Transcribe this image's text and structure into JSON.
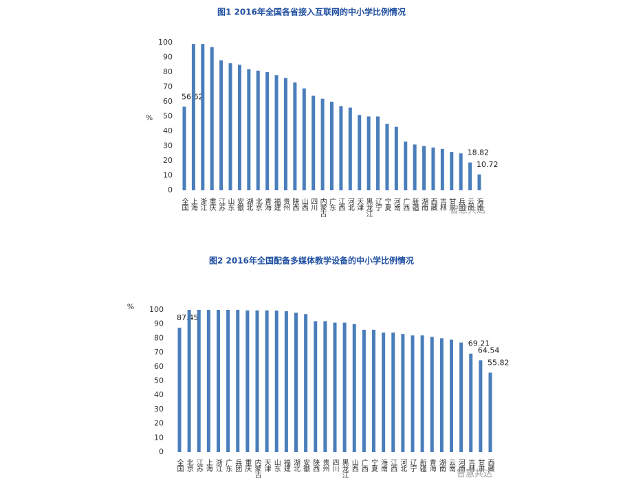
{
  "chart_data": [
    {
      "type": "bar",
      "title": "图1 2016年全国各省接入互联网的中小学比例情况",
      "y_label": "%",
      "categories": [
        "全国",
        "上海",
        "浙江",
        "重庆",
        "江苏",
        "山东",
        "安徽",
        "湖北",
        "北京",
        "青海",
        "福建",
        "贵州",
        "陕西",
        "山西",
        "四川",
        "内蒙古",
        "广东",
        "江西",
        "河北",
        "天津",
        "黑龙江",
        "辽宁",
        "宁夏",
        "河南",
        "广西",
        "新疆",
        "湖南",
        "西藏",
        "吉林",
        "甘肃",
        "兵团",
        "云南",
        "海南"
      ],
      "values": [
        56.62,
        99,
        99,
        97,
        88,
        86,
        85,
        82,
        81,
        80,
        78,
        76,
        73,
        69,
        64,
        62,
        60,
        57,
        56,
        51,
        50,
        50,
        45,
        43,
        33,
        31,
        30,
        29,
        28,
        26,
        25,
        18.82,
        10.72
      ],
      "value_labels": [
        "56.62",
        null,
        null,
        null,
        null,
        null,
        null,
        null,
        null,
        null,
        null,
        null,
        null,
        null,
        null,
        null,
        null,
        null,
        null,
        null,
        null,
        null,
        null,
        null,
        null,
        null,
        null,
        null,
        null,
        null,
        null,
        "18.82",
        "10.72"
      ],
      "color": "#4a7ebb",
      "ylim": [
        0,
        100
      ],
      "yticks": [
        0,
        10,
        20,
        30,
        40,
        50,
        60,
        70,
        80,
        90,
        100
      ],
      "grid": false,
      "watermark": "智慧共达"
    },
    {
      "type": "bar",
      "title": "图2 2016年全国配备多媒体教学设备的中小学比例情况",
      "y_label": "%",
      "categories": [
        "全国",
        "北京",
        "江苏",
        "上海",
        "浙江",
        "广东",
        "兵团",
        "重庆",
        "内蒙古",
        "天津",
        "山东",
        "福建",
        "湖北",
        "安徽",
        "陕西",
        "贵州",
        "四川",
        "黑龙江",
        "山西",
        "广西",
        "宁夏",
        "海南",
        "江西",
        "河北",
        "辽宁",
        "新疆",
        "青海",
        "湖南",
        "云南",
        "河南",
        "吉林",
        "甘肃",
        "西藏"
      ],
      "values": [
        87.45,
        100,
        100,
        100,
        100,
        100,
        100,
        99.6,
        99.6,
        99.6,
        99.5,
        99,
        98,
        97,
        92,
        92,
        91,
        91,
        90,
        86,
        86,
        84,
        84,
        83,
        82,
        82,
        81,
        80,
        79,
        77,
        69.21,
        64.54,
        55.82
      ],
      "value_labels": [
        "87.45",
        null,
        null,
        null,
        null,
        null,
        null,
        null,
        null,
        null,
        null,
        null,
        null,
        null,
        null,
        null,
        null,
        null,
        null,
        null,
        null,
        null,
        null,
        null,
        null,
        null,
        null,
        null,
        null,
        null,
        "69.21",
        "64.54",
        "55.82"
      ],
      "color": "#4a7ebb",
      "ylim": [
        0,
        100
      ],
      "yticks": [
        0,
        10,
        20,
        30,
        40,
        50,
        60,
        70,
        80,
        90,
        100
      ],
      "grid": false,
      "watermark": "智慧共达"
    }
  ]
}
